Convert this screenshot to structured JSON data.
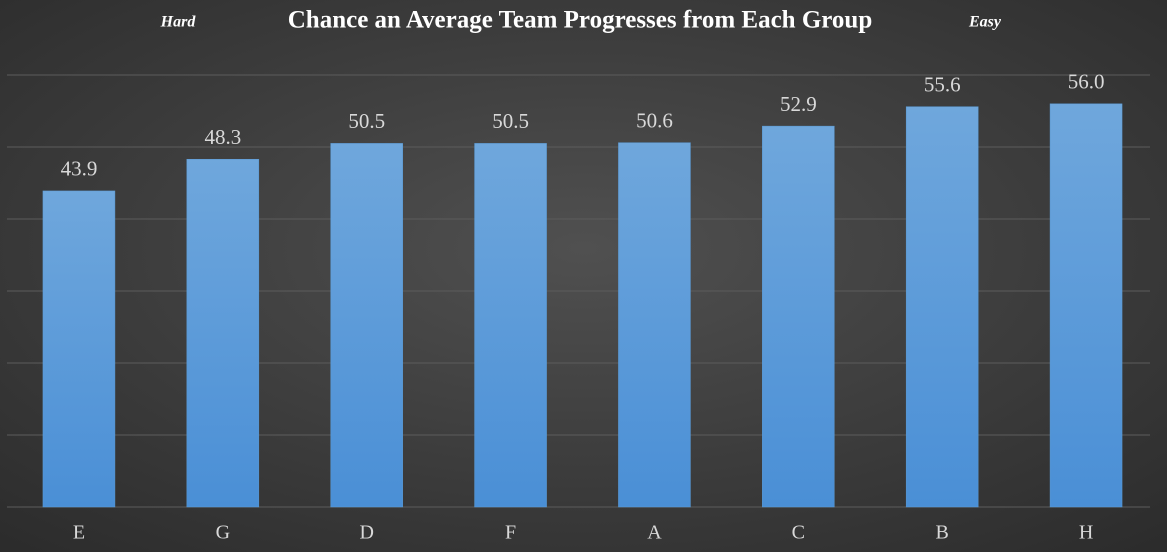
{
  "chart_data": {
    "type": "bar",
    "title": "Chance an Average Team Progresses from Each Group",
    "annotations": [
      "Hard",
      "Easy"
    ],
    "categories": [
      "E",
      "G",
      "D",
      "F",
      "A",
      "C",
      "B",
      "H"
    ],
    "values": [
      43.9,
      48.3,
      50.5,
      50.5,
      50.6,
      52.9,
      55.6,
      56.0
    ],
    "value_labels": [
      "43.9",
      "48.3",
      "50.5",
      "50.5",
      "50.6",
      "52.9",
      "55.6",
      "56.0"
    ],
    "color": "#5b9bd5",
    "ylim": [
      0,
      60
    ],
    "yticks": [
      0,
      10,
      20,
      30,
      40,
      50,
      60
    ],
    "grid": true
  }
}
